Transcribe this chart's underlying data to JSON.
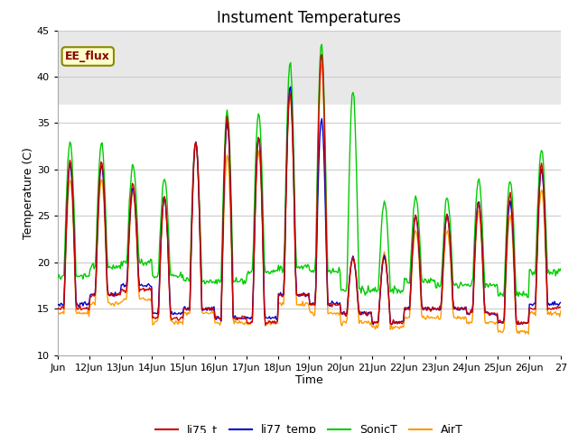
{
  "title": "Instument Temperatures",
  "xlabel": "Time",
  "ylabel": "Temperature (C)",
  "ylim": [
    10,
    45
  ],
  "xlim_start": 0,
  "xlim_end": 16,
  "x_tick_labels": [
    "Jun",
    "12Jun",
    "13Jun",
    "14Jun",
    "15Jun",
    "16Jun",
    "17Jun",
    "18Jun",
    "19Jun",
    "20Jun",
    "21Jun",
    "22Jun",
    "23Jun",
    "24Jun",
    "25Jun",
    "26Jun",
    "27"
  ],
  "y_ticks": [
    10,
    15,
    20,
    25,
    30,
    35,
    40,
    45
  ],
  "annotation_text": "EE_flux",
  "colors": {
    "li75_t": "#cc0000",
    "li77_temp": "#0000cc",
    "SonicT": "#00cc00",
    "AirT": "#ff9900"
  },
  "background_color": "#ffffff",
  "plot_bg_color": "#ffffff",
  "shaded_band_lo": 37,
  "shaded_band_hi": 45,
  "shaded_band_color": "#e8e8e8",
  "grid_color": "#cccccc",
  "title_fontsize": 12,
  "axis_fontsize": 9,
  "tick_fontsize": 8,
  "legend_fontsize": 9,
  "num_days": 16,
  "time_points": 500
}
